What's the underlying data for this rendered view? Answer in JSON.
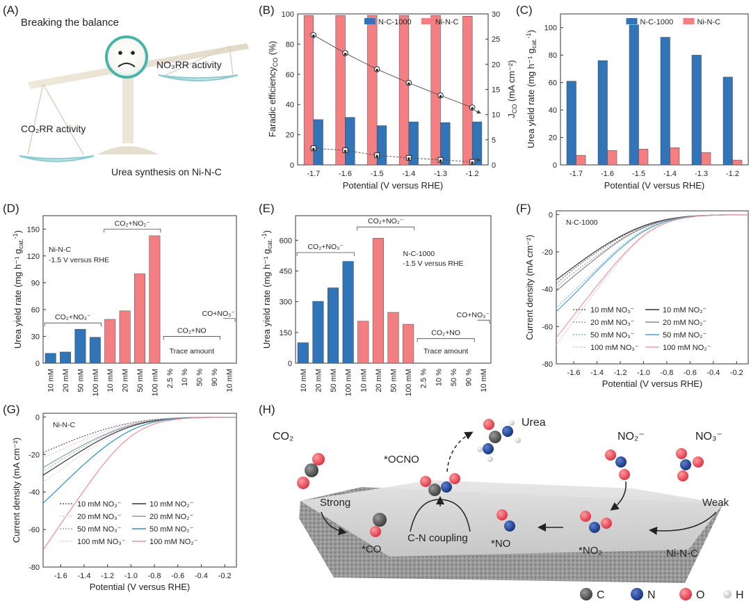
{
  "panel_labels": [
    "(A)",
    "(B)",
    "(C)",
    "(D)",
    "(E)",
    "(F)",
    "(G)",
    "(H)"
  ],
  "colors": {
    "blue": "#3274b8",
    "red": "#f47f82",
    "ncblue": "#1a3f93",
    "ored": "#ea4a55",
    "cgray": "#4a4a4a"
  },
  "panelA": {
    "title": "Breaking the balance",
    "no3rr": "NO₃RR activity",
    "co2rr": "CO₂RR activity",
    "caption": "Urea synthesis on Ni-N-C"
  },
  "chart_data": [
    {
      "id": "B",
      "type": "bar",
      "categories": [
        "-1.7",
        "-1.6",
        "-1.5",
        "-1.4",
        "-1.3",
        "-1.2"
      ],
      "xlabel": "Potential (V versus RHE)",
      "ylabel": "Faradic efficiency₁₀ (%)",
      "ylabel_main": "Faradic efficiency",
      "ylabel_sub": "CO",
      "ylabel_unit": " (%)",
      "ylim": [
        0,
        100
      ],
      "yticks": [
        0,
        20,
        40,
        60,
        80,
        100
      ],
      "y2label_main": "J",
      "y2label_sub": "CO",
      "y2label_unit": " (mA cm⁻²)",
      "y2lim": [
        0,
        30
      ],
      "y2ticks": [
        0,
        5,
        10,
        15,
        20,
        25,
        30
      ],
      "series": [
        {
          "name": "N-C-1000",
          "values": [
            30,
            31.5,
            26,
            28.5,
            28,
            28.5
          ]
        },
        {
          "name": "Ni-N-C",
          "values": [
            99,
            99,
            99,
            99,
            99,
            98.5
          ]
        }
      ],
      "line_series": [
        {
          "values": [
            25.8,
            22.2,
            19.0,
            16.3,
            13.8,
            11.4
          ]
        },
        {
          "values": [
            3.3,
            2.9,
            1.9,
            1.4,
            1.0,
            0.6
          ]
        }
      ],
      "legend": "top"
    },
    {
      "id": "C",
      "type": "bar",
      "categories": [
        "-1.7",
        "-1.6",
        "-1.5",
        "-1.4",
        "-1.3",
        "-1.2"
      ],
      "xlabel": "Potential (V versus RHE)",
      "ylabel_main": "Urea yield rate (mg h⁻¹ g",
      "ylabel_sub": "cat.",
      "ylabel_sup": "-1",
      "ylabel_end": ")",
      "ylim": [
        0,
        110
      ],
      "yticks": [
        0,
        20,
        40,
        60,
        80,
        100
      ],
      "series": [
        {
          "name": "N-C-1000",
          "values": [
            61,
            76,
            102,
            93,
            80,
            64
          ]
        },
        {
          "name": "Ni-N-C",
          "values": [
            7,
            10.5,
            11.5,
            12.5,
            9,
            3.5
          ]
        }
      ],
      "legend": "top"
    },
    {
      "id": "D",
      "type": "bar",
      "categories": [
        "10 mM",
        "20 mM",
        "50 mM",
        "100 mM",
        "10 mM",
        "20 mM",
        "50 mM",
        "100 mM",
        "2.5 %",
        "10 %",
        "50 %",
        "90 %",
        "10 mM"
      ],
      "ylabel_main": "Urea yield rate (mg h⁻¹ g",
      "ylabel_sub": "cat.",
      "ylabel_sup": "-1",
      "ylabel_end": ")",
      "ylim": [
        0,
        165
      ],
      "yticks": [
        0,
        30,
        60,
        90,
        120,
        150
      ],
      "values": [
        11,
        12.5,
        38,
        29,
        49,
        58.5,
        100,
        142.5,
        0,
        0,
        0,
        0,
        0
      ],
      "bar_colors": [
        "blue",
        "blue",
        "blue",
        "blue",
        "red",
        "red",
        "red",
        "red",
        "none",
        "none",
        "none",
        "none",
        "none"
      ],
      "annotation": [
        "Ni-N-C",
        "-1.5 V versus RHE"
      ],
      "groups": [
        {
          "label": "CO₂+NO₃⁻",
          "from": 0,
          "to": 3,
          "y": 45
        },
        {
          "label": "CO₂+NO₂⁻",
          "from": 4,
          "to": 7,
          "y": 150
        },
        {
          "label": "CO₂+NO",
          "from": 8,
          "to": 11,
          "y": 30
        },
        {
          "label": "CO+NO₃⁻",
          "from": 12,
          "to": 12,
          "y": 50
        }
      ],
      "trace": "Trace amount"
    },
    {
      "id": "E",
      "type": "bar",
      "categories": [
        "10 mM",
        "20 mM",
        "50 mM",
        "100 mM",
        "10 mM",
        "20 mM",
        "50 mM",
        "100 mM",
        "2.5 %",
        "10 %",
        "50 %",
        "90 %",
        "10 mM"
      ],
      "ylabel_main": "Urea yield rate (mg h⁻¹ g",
      "ylabel_sub": "cat.",
      "ylabel_sup": "-1",
      "ylabel_end": ")",
      "ylim": [
        0,
        720
      ],
      "yticks": [
        0,
        150,
        300,
        450,
        600
      ],
      "values": [
        100,
        302,
        368,
        497,
        205,
        610,
        248,
        190,
        0,
        0,
        0,
        0,
        0
      ],
      "bar_colors": [
        "blue",
        "blue",
        "blue",
        "blue",
        "red",
        "red",
        "red",
        "red",
        "none",
        "none",
        "none",
        "none",
        "none"
      ],
      "annotation": [
        "N-C-1000",
        "-1.5 V versus RHE"
      ],
      "groups": [
        {
          "label": "CO₂+NO₃⁻",
          "from": 0,
          "to": 3,
          "y": 540
        },
        {
          "label": "CO₂+NO₂⁻",
          "from": 4,
          "to": 7,
          "y": 665
        },
        {
          "label": "CO₂+NO",
          "from": 8,
          "to": 11,
          "y": 120
        },
        {
          "label": "CO+NO₃⁻",
          "from": 12,
          "to": 12,
          "y": 210
        }
      ],
      "trace": "Trace amount"
    },
    {
      "id": "F",
      "type": "line",
      "xlabel": "Potential (V versus RHE)",
      "ylabel": "Current density (mA cm⁻²)",
      "xlim": [
        -1.75,
        -0.1
      ],
      "ylim": [
        -80,
        2
      ],
      "xticks": [
        -1.6,
        -1.4,
        -1.2,
        -1.0,
        -0.8,
        -0.6,
        -0.4,
        -0.2
      ],
      "yticks": [
        0,
        -20,
        -40,
        -60,
        -80
      ],
      "annotation": "N-C-1000",
      "series": [
        {
          "name": "10 mM NO₃⁻",
          "color": "#666666",
          "dash": "2,2",
          "x": [
            -1.75,
            -1.6,
            -1.4,
            -1.2,
            -1.0,
            -0.8,
            -0.6,
            -0.4,
            -0.2,
            -0.1
          ],
          "y": [
            -37,
            -29,
            -20,
            -12,
            -6,
            -2.5,
            -0.8,
            -0.3,
            -0.1,
            -0.1
          ]
        },
        {
          "name": "20 mM NO₃⁻",
          "color": "#9a9a9a",
          "dash": "2,2",
          "x": [
            -1.75,
            -1.6,
            -1.4,
            -1.2,
            -1.0,
            -0.8,
            -0.6,
            -0.4,
            -0.2,
            -0.1
          ],
          "y": [
            -39,
            -31,
            -22,
            -13,
            -6.5,
            -2.7,
            -0.9,
            -0.3,
            -0.1,
            -0.1
          ]
        },
        {
          "name": "50 mM NO₃⁻",
          "color": "#7ab8d6",
          "dash": "2,2",
          "x": [
            -1.75,
            -1.6,
            -1.4,
            -1.2,
            -1.0,
            -0.8,
            -0.6,
            -0.4,
            -0.2,
            -0.1
          ],
          "y": [
            -50,
            -41,
            -29,
            -17,
            -8,
            -3.2,
            -1.0,
            -0.3,
            -0.1,
            -0.1
          ]
        },
        {
          "name": "100 mM NO₃⁻",
          "color": "#f2b8bd",
          "dash": "2,2",
          "x": [
            -1.75,
            -1.6,
            -1.4,
            -1.2,
            -1.0,
            -0.8,
            -0.6,
            -0.4,
            -0.2,
            -0.1
          ],
          "y": [
            -70,
            -57,
            -40,
            -24,
            -11,
            -4,
            -1.2,
            -0.4,
            -0.1,
            -0.1
          ]
        },
        {
          "name": "10 mM NO₂⁻",
          "color": "#333333",
          "dash": "",
          "x": [
            -1.75,
            -1.6,
            -1.4,
            -1.2,
            -1.0,
            -0.8,
            -0.6,
            -0.4,
            -0.2,
            -0.1
          ],
          "y": [
            -35,
            -28,
            -19,
            -11.5,
            -5.8,
            -2.4,
            -0.8,
            -0.3,
            -0.1,
            -0.1
          ]
        },
        {
          "name": "20 mM NO₂⁻",
          "color": "#8a8a8a",
          "dash": "",
          "x": [
            -1.75,
            -1.6,
            -1.4,
            -1.2,
            -1.0,
            -0.8,
            -0.6,
            -0.4,
            -0.2,
            -0.1
          ],
          "y": [
            -41,
            -33,
            -23,
            -13.5,
            -6.8,
            -2.8,
            -0.9,
            -0.3,
            -0.1,
            -0.1
          ]
        },
        {
          "name": "50 mM NO₂⁻",
          "color": "#4aa3cc",
          "dash": "",
          "x": [
            -1.75,
            -1.6,
            -1.4,
            -1.2,
            -1.0,
            -0.8,
            -0.6,
            -0.4,
            -0.2,
            -0.1
          ],
          "y": [
            -52,
            -43,
            -30,
            -18,
            -8.5,
            -3.3,
            -1.0,
            -0.3,
            -0.1,
            -0.1
          ]
        },
        {
          "name": "100 mM NO₂⁻",
          "color": "#ee9aa2",
          "dash": "",
          "x": [
            -1.75,
            -1.6,
            -1.4,
            -1.2,
            -1.0,
            -0.8,
            -0.6,
            -0.4,
            -0.2,
            -0.1
          ],
          "y": [
            -66,
            -54,
            -38,
            -23,
            -10.5,
            -3.8,
            -1.1,
            -0.4,
            -0.1,
            -0.1
          ]
        }
      ]
    },
    {
      "id": "G",
      "type": "line",
      "xlabel": "Potential (V versus RHE)",
      "ylabel": "Current density (mA cm⁻²)",
      "xlim": [
        -1.75,
        -0.1
      ],
      "ylim": [
        -80,
        2
      ],
      "xticks": [
        -1.6,
        -1.4,
        -1.2,
        -1.0,
        -0.8,
        -0.6,
        -0.4,
        -0.2
      ],
      "yticks": [
        0,
        -20,
        -40,
        -60,
        -80
      ],
      "annotation": "Ni-N-C",
      "series": [
        {
          "name": "10 mM NO₃⁻",
          "color": "#555555",
          "dash": "2,2",
          "x": [
            -1.75,
            -1.6,
            -1.4,
            -1.2,
            -1.0,
            -0.8,
            -0.6,
            -0.4,
            -0.2,
            -0.1
          ],
          "y": [
            -19,
            -15,
            -10,
            -6,
            -3,
            -1.2,
            -0.4,
            -0.2,
            -0.1,
            -0.1
          ]
        },
        {
          "name": "20 mM NO₃⁻",
          "color": "#f2c2c6",
          "dash": "2,2",
          "x": [
            -1.75,
            -1.6,
            -1.4,
            -1.2,
            -1.0,
            -0.8,
            -0.6,
            -0.4,
            -0.2,
            -0.1
          ],
          "y": [
            -22,
            -17.5,
            -12,
            -7,
            -3.4,
            -1.3,
            -0.4,
            -0.2,
            -0.1,
            -0.1
          ]
        },
        {
          "name": "50 mM NO₃⁻",
          "color": "#7ab8d6",
          "dash": "2,2",
          "x": [
            -1.75,
            -1.6,
            -1.4,
            -1.2,
            -1.0,
            -0.8,
            -0.6,
            -0.4,
            -0.2,
            -0.1
          ],
          "y": [
            -29,
            -23,
            -15.5,
            -9,
            -4.3,
            -1.6,
            -0.5,
            -0.2,
            -0.1,
            -0.1
          ]
        },
        {
          "name": "100 mM NO₃⁻",
          "color": "#f5c8cc",
          "dash": "2,2",
          "x": [
            -1.75,
            -1.6,
            -1.4,
            -1.2,
            -1.0,
            -0.8,
            -0.6,
            -0.4,
            -0.2,
            -0.1
          ],
          "y": [
            -35,
            -28,
            -19,
            -11,
            -5.2,
            -1.9,
            -0.6,
            -0.2,
            -0.1,
            -0.1
          ]
        },
        {
          "name": "10 mM NO₂⁻",
          "color": "#333333",
          "dash": "",
          "x": [
            -1.75,
            -1.6,
            -1.4,
            -1.2,
            -1.0,
            -0.8,
            -0.6,
            -0.4,
            -0.2,
            -0.1
          ],
          "y": [
            -31,
            -25,
            -17,
            -10,
            -4.7,
            -1.8,
            -0.6,
            -0.2,
            -0.1,
            -0.1
          ]
        },
        {
          "name": "20 mM NO₂⁻",
          "color": "#999999",
          "dash": "",
          "x": [
            -1.75,
            -1.6,
            -1.4,
            -1.2,
            -1.0,
            -0.8,
            -0.6,
            -0.4,
            -0.2,
            -0.1
          ],
          "y": [
            -27,
            -21.5,
            -14.5,
            -8.5,
            -4,
            -1.5,
            -0.5,
            -0.2,
            -0.1,
            -0.1
          ]
        },
        {
          "name": "50 mM NO₂⁻",
          "color": "#2b8fc4",
          "dash": "",
          "x": [
            -1.75,
            -1.6,
            -1.4,
            -1.2,
            -1.0,
            -0.8,
            -0.6,
            -0.4,
            -0.2,
            -0.1
          ],
          "y": [
            -46,
            -37,
            -25,
            -14.5,
            -6.6,
            -2.3,
            -0.7,
            -0.2,
            -0.1,
            -0.1
          ]
        },
        {
          "name": "100 mM NO₂⁻",
          "color": "#ee8f98",
          "dash": "",
          "x": [
            -1.75,
            -1.6,
            -1.4,
            -1.2,
            -1.0,
            -0.8,
            -0.6,
            -0.4,
            -0.2,
            -0.1
          ],
          "y": [
            -71,
            -57,
            -39,
            -22,
            -9.5,
            -3.2,
            -0.9,
            -0.3,
            -0.1,
            -0.1
          ]
        }
      ]
    }
  ],
  "panelH": {
    "co2": "CO₂",
    "no2": "NO₂⁻",
    "no3": "NO₃⁻",
    "urea": "Urea",
    "ocno": "*OCNO",
    "strong": "Strong",
    "weak": "Weak",
    "co": "*CO",
    "cn": "C-N coupling",
    "no": "*NO",
    "no2ads": "*NO₂",
    "catalyst": "Ni-N-C",
    "legend": [
      {
        "label": "C",
        "color": "#4a4a4a"
      },
      {
        "label": "N",
        "color": "#1a3f93"
      },
      {
        "label": "O",
        "color": "#ea4a55"
      },
      {
        "label": "H",
        "color": "#d8d8d8"
      }
    ]
  }
}
